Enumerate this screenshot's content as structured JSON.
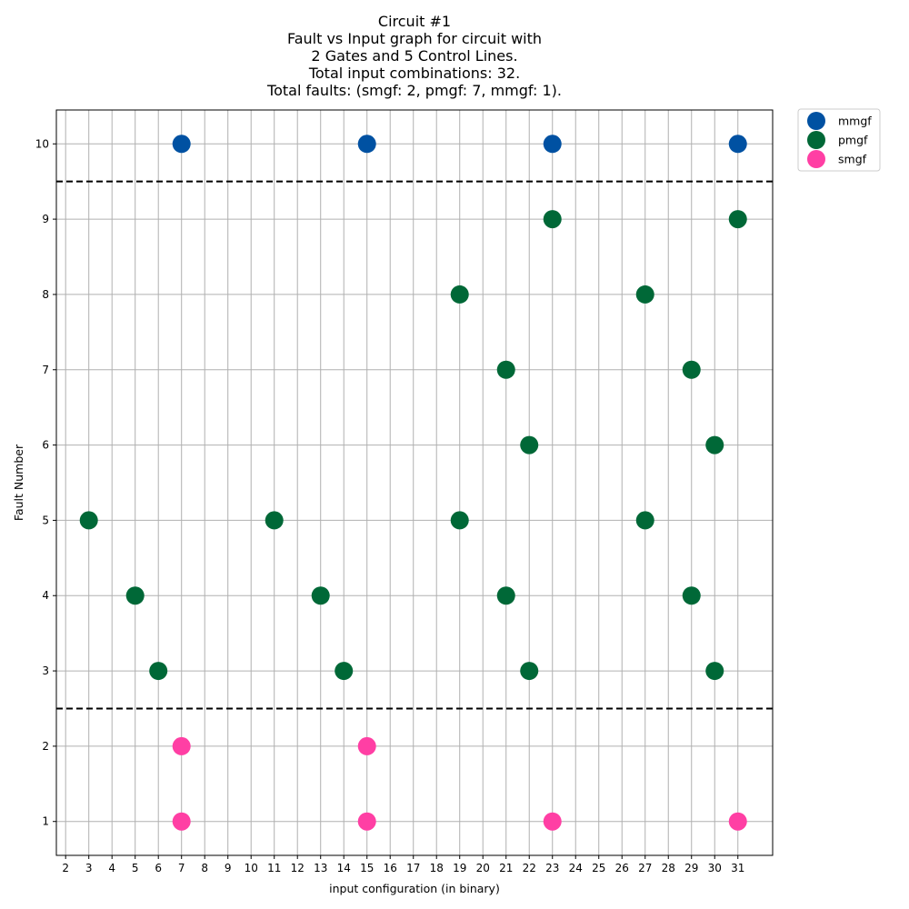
{
  "chart_data": {
    "type": "scatter",
    "title_lines": [
      "Circuit #1",
      "Fault vs Input graph for circuit with",
      "2 Gates and 5 Control Lines.",
      "Total input combinations: 32.",
      "Total faults: (smgf: 2, pmgf: 7, mmgf: 1)."
    ],
    "xlabel": "input configuration (in binary)",
    "ylabel": "Fault Number",
    "x_ticks": [
      2,
      3,
      4,
      5,
      6,
      7,
      8,
      9,
      10,
      11,
      12,
      13,
      14,
      15,
      16,
      17,
      18,
      19,
      20,
      21,
      22,
      23,
      24,
      25,
      26,
      27,
      28,
      29,
      30,
      31
    ],
    "y_ticks": [
      1,
      2,
      3,
      4,
      5,
      6,
      7,
      8,
      9,
      10
    ],
    "xlim": [
      1.6,
      32.5
    ],
    "ylim": [
      0.55,
      10.45
    ],
    "grid": true,
    "threshold_lines_y": [
      2.5,
      9.5
    ],
    "legend_position": "outside-top-right",
    "series": [
      {
        "name": "mmgf",
        "color": "#0051a2",
        "points": [
          [
            7,
            10
          ],
          [
            15,
            10
          ],
          [
            23,
            10
          ],
          [
            31,
            10
          ]
        ]
      },
      {
        "name": "pmgf",
        "color": "#006837",
        "points": [
          [
            3,
            5
          ],
          [
            5,
            4
          ],
          [
            6,
            3
          ],
          [
            11,
            5
          ],
          [
            13,
            4
          ],
          [
            14,
            3
          ],
          [
            19,
            8
          ],
          [
            19,
            5
          ],
          [
            21,
            7
          ],
          [
            21,
            4
          ],
          [
            22,
            6
          ],
          [
            22,
            3
          ],
          [
            23,
            9
          ],
          [
            27,
            8
          ],
          [
            27,
            5
          ],
          [
            29,
            7
          ],
          [
            29,
            4
          ],
          [
            30,
            6
          ],
          [
            30,
            3
          ],
          [
            31,
            9
          ]
        ]
      },
      {
        "name": "smgf",
        "color": "#ff3fa4",
        "points": [
          [
            7,
            2
          ],
          [
            7,
            1
          ],
          [
            15,
            2
          ],
          [
            15,
            1
          ],
          [
            23,
            1
          ],
          [
            31,
            1
          ]
        ]
      }
    ]
  }
}
